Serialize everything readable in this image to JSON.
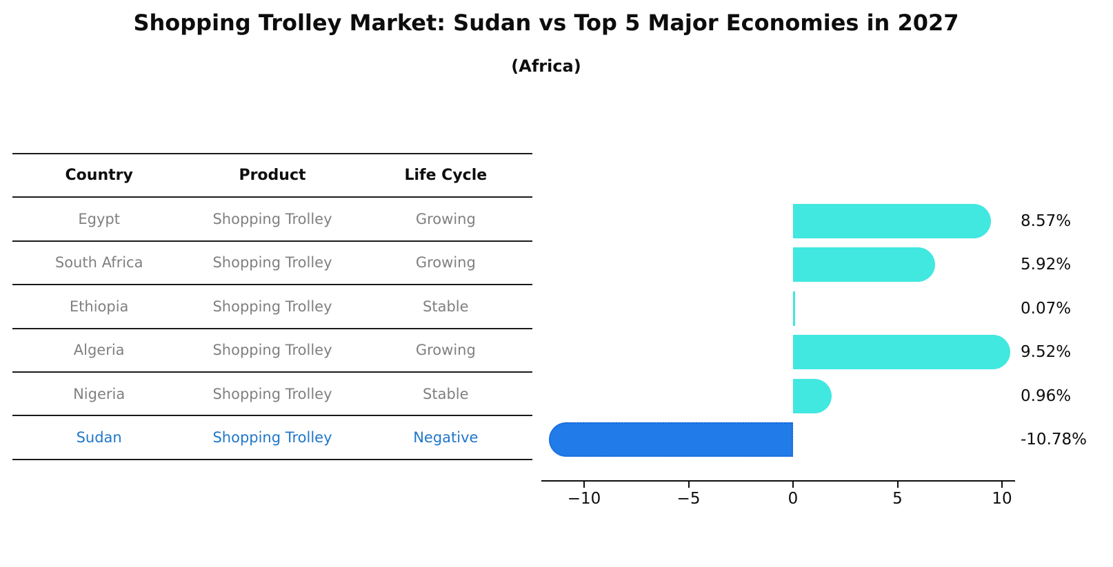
{
  "title": "Shopping Trolley Market: Sudan vs Top 5 Major Economies in 2027",
  "subtitle": "(Africa)",
  "table": {
    "columns": [
      "Country",
      "Product",
      "Life Cycle"
    ],
    "rows": [
      {
        "country": "Egypt",
        "product": "Shopping Trolley",
        "life_cycle": "Growing",
        "highlight": false
      },
      {
        "country": "South Africa",
        "product": "Shopping Trolley",
        "life_cycle": "Growing",
        "highlight": false
      },
      {
        "country": "Ethiopia",
        "product": "Shopping Trolley",
        "life_cycle": "Stable",
        "highlight": false
      },
      {
        "country": "Algeria",
        "product": "Shopping Trolley",
        "life_cycle": "Growing",
        "highlight": false
      },
      {
        "country": "Nigeria",
        "product": "Shopping Trolley",
        "life_cycle": "Stable",
        "highlight": false
      },
      {
        "country": "Sudan",
        "product": "Shopping Trolley",
        "life_cycle": "Negative",
        "highlight": true
      }
    ]
  },
  "chart_data": {
    "type": "bar",
    "orientation": "horizontal",
    "title": "Shopping Trolley Market: Sudan vs Top 5 Major Economies in 2027",
    "subtitle": "(Africa)",
    "categories": [
      "Egypt",
      "South Africa",
      "Ethiopia",
      "Algeria",
      "Nigeria",
      "Sudan"
    ],
    "values": [
      8.57,
      5.92,
      0.07,
      9.52,
      0.96,
      -10.78
    ],
    "value_labels": [
      "8.57%",
      "5.92%",
      "0.07%",
      "9.52%",
      "0.96%",
      "-10.78%"
    ],
    "xlabel": "",
    "ylabel": "",
    "xlim": [
      -12,
      10.6
    ],
    "x_ticks": [
      -10,
      -5,
      0,
      5,
      10
    ],
    "x_tick_labels": [
      "−10",
      "−5",
      "0",
      "5",
      "10"
    ],
    "grid": false,
    "legend": "none",
    "colors": {
      "positive_bar": "#40e8e0",
      "negative_bar": "#217be8",
      "negative_bar_border": "#1566d8",
      "highlight_text": "#1f77c9",
      "table_text": "#808080",
      "axis_text": "#0d0d0d"
    }
  }
}
